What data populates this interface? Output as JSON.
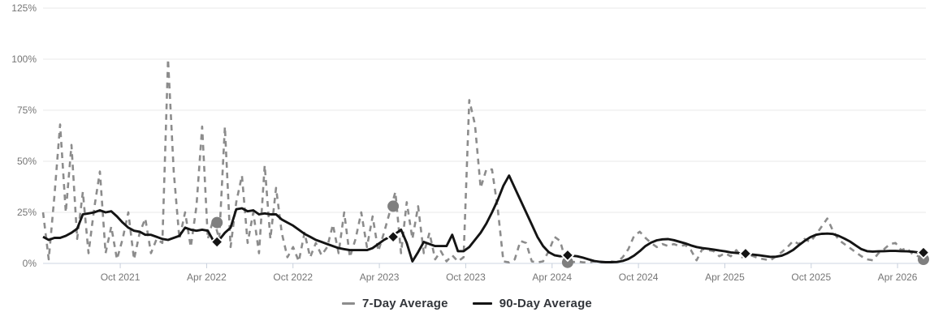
{
  "chart_data": {
    "type": "line",
    "title": "",
    "x_domain": [
      2021.303,
      2026.414
    ],
    "x_axis": {
      "ticks": [
        {
          "t": 2021.75,
          "label": "Oct 2021"
        },
        {
          "t": 2022.25,
          "label": "Apr 2022"
        },
        {
          "t": 2022.75,
          "label": "Oct 2022"
        },
        {
          "t": 2023.25,
          "label": "Apr 2023"
        },
        {
          "t": 2023.75,
          "label": "Oct 2023"
        },
        {
          "t": 2024.25,
          "label": "Apr 2024"
        },
        {
          "t": 2024.75,
          "label": "Oct 2024"
        },
        {
          "t": 2025.25,
          "label": "Apr 2025"
        },
        {
          "t": 2025.75,
          "label": "Oct 2025"
        },
        {
          "t": 2026.25,
          "label": "Apr 2026"
        }
      ]
    },
    "y_axis": {
      "range": [
        0,
        125
      ],
      "ticks": [
        {
          "v": 0,
          "label": "0%"
        },
        {
          "v": 25,
          "label": "25%"
        },
        {
          "v": 50,
          "label": "50%"
        },
        {
          "v": 75,
          "label": "75%"
        },
        {
          "v": 100,
          "label": "100%"
        },
        {
          "v": 125,
          "label": "125%"
        }
      ]
    },
    "series": [
      {
        "name": "7-Day Average",
        "style": "dashed",
        "color": "#8c8c8c",
        "x_start": 2021.303,
        "x_step": 0.0329,
        "values": [
          25,
          2,
          33,
          68,
          25,
          58,
          12,
          35,
          5,
          27,
          45,
          5,
          18,
          2,
          12,
          25,
          2,
          15,
          22,
          5,
          12,
          10,
          100,
          45,
          12,
          25,
          8,
          28,
          67,
          12,
          22,
          12,
          67,
          8,
          30,
          43,
          10,
          25,
          5,
          48,
          12,
          37,
          15,
          3,
          8,
          1,
          15,
          3,
          10,
          4,
          8,
          19,
          5,
          25,
          3,
          12,
          25,
          8,
          23,
          6,
          15,
          25,
          35,
          5,
          30,
          12,
          28,
          5,
          15,
          2,
          6,
          1,
          4,
          1,
          3,
          80,
          68,
          37,
          46,
          46,
          27,
          1,
          0.5,
          2,
          11,
          10,
          1,
          0.5,
          1,
          6,
          13,
          11,
          1,
          0.5,
          1,
          0.5,
          0.5,
          1,
          0.5,
          0.5,
          1,
          0.5,
          3,
          7,
          13.5,
          15.5,
          12.5,
          10,
          8,
          9.5,
          8.5,
          9.5,
          8.5,
          9,
          6.5,
          1.5,
          7,
          6.5,
          6,
          3.5,
          5,
          3.5,
          6.5,
          3,
          4.5,
          3.5,
          2.5,
          2,
          1.5,
          3.5,
          5.5,
          8,
          11,
          9.5,
          12,
          10.5,
          14,
          18,
          22,
          16,
          11.5,
          9.5,
          7.5,
          5.5,
          3.5,
          2,
          1.5,
          5,
          7,
          9.5,
          10,
          6.5,
          7.5,
          4.5,
          3.5,
          2.5
        ]
      },
      {
        "name": "90-Day Average",
        "style": "solid",
        "color": "#141414",
        "x_start": 2021.303,
        "x_step": 0.0329,
        "values": [
          13,
          11.5,
          12.5,
          12.5,
          13.5,
          15,
          17,
          24,
          24.5,
          25,
          26,
          25,
          25.5,
          23,
          20,
          17.5,
          16,
          15.5,
          14,
          14,
          13,
          12,
          11.5,
          12.5,
          13.5,
          17.5,
          16.5,
          16,
          16.5,
          16,
          11,
          11.5,
          15,
          17.5,
          26.5,
          27,
          25.5,
          26,
          24,
          24.5,
          24,
          24,
          21.5,
          20,
          18.5,
          16.5,
          14.5,
          13,
          11.5,
          10.5,
          9.5,
          8.5,
          7.5,
          7,
          6.5,
          6.5,
          6.5,
          6.5,
          7.5,
          9.5,
          11.5,
          13,
          14.5,
          16.5,
          10,
          1,
          5.5,
          10.5,
          9.5,
          8.5,
          8.5,
          8.5,
          14,
          6,
          6,
          8,
          11.5,
          15,
          19.5,
          25,
          31,
          38,
          43,
          37,
          31,
          25,
          19,
          13,
          8.5,
          5.5,
          4,
          3.5,
          3.8,
          3.8,
          3.5,
          2.8,
          2,
          1.2,
          0.8,
          0.6,
          0.6,
          0.7,
          1.2,
          2.2,
          3.8,
          6,
          8.5,
          10.2,
          11.3,
          11.8,
          11.9,
          11.4,
          10.6,
          9.8,
          8.8,
          8,
          7.5,
          7.2,
          6.8,
          6.3,
          5.9,
          5.4,
          5.1,
          4.9,
          4.6,
          4.3,
          4,
          3.6,
          3.2,
          3.3,
          3.8,
          5,
          6.6,
          8.9,
          11,
          12.8,
          14,
          14.5,
          14.6,
          14.4,
          13.5,
          12.2,
          10.7,
          8.8,
          7,
          6,
          5.8,
          5.9,
          6,
          6.1,
          6.1,
          6,
          5.9,
          5.7,
          5.4,
          5.3
        ]
      }
    ],
    "markers": {
      "seven_day": {
        "shape": "circle",
        "color": "#7f7f7f",
        "points": [
          [
            2022.31,
            20
          ],
          [
            2023.33,
            28
          ],
          [
            2024.34,
            0.5
          ],
          [
            2026.4,
            2
          ]
        ]
      },
      "ninety_day": {
        "shape": "diamond",
        "color": "#141414",
        "points": [
          [
            2022.31,
            10.5
          ],
          [
            2023.33,
            13
          ],
          [
            2024.34,
            4
          ],
          [
            2025.37,
            4.8
          ],
          [
            2026.4,
            5.3
          ]
        ]
      }
    },
    "legend": {
      "position": "bottom",
      "items": [
        "7-Day Average",
        "90-Day Average"
      ]
    },
    "colors": {
      "grid": "#e9e9e9",
      "axis_line": "#ccd4e0",
      "tick": "#c8d0dc",
      "axis_label": "#757575",
      "legend_text": "#33363b"
    }
  }
}
